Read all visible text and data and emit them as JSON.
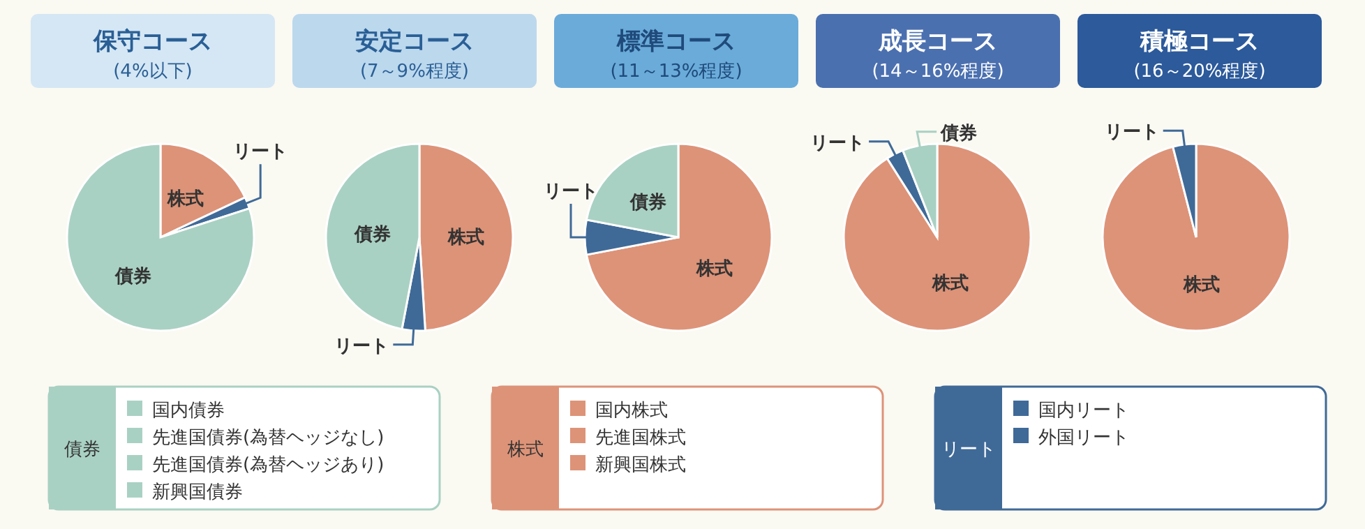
{
  "chart_data": [
    {
      "type": "pie",
      "title": "保守コース",
      "subtitle": "(4%以下)",
      "categories": [
        "株式",
        "リート",
        "債券"
      ],
      "values": [
        18,
        2,
        80
      ],
      "colors": [
        "#dd9378",
        "#3f6a98",
        "#a9d1c3"
      ]
    },
    {
      "type": "pie",
      "title": "安定コース",
      "subtitle": "(7～9%程度)",
      "categories": [
        "株式",
        "リート",
        "債券"
      ],
      "values": [
        49,
        4,
        47
      ],
      "colors": [
        "#dd9378",
        "#3f6a98",
        "#a9d1c3"
      ]
    },
    {
      "type": "pie",
      "title": "標準コース",
      "subtitle": "(11～13%程度)",
      "categories": [
        "株式",
        "リート",
        "債券"
      ],
      "values": [
        72,
        6,
        22
      ],
      "colors": [
        "#dd9378",
        "#3f6a98",
        "#a9d1c3"
      ]
    },
    {
      "type": "pie",
      "title": "成長コース",
      "subtitle": "(14～16%程度)",
      "categories": [
        "株式",
        "リート",
        "債券"
      ],
      "values": [
        91,
        3,
        6
      ],
      "colors": [
        "#dd9378",
        "#3f6a98",
        "#a9d1c3"
      ]
    },
    {
      "type": "pie",
      "title": "積極コース",
      "subtitle": "(16～20%程度)",
      "categories": [
        "株式",
        "リート"
      ],
      "values": [
        96,
        4
      ],
      "colors": [
        "#dd9378",
        "#3f6a98"
      ]
    },
    {
      "type": "other",
      "annotations": [
        "債券",
        "国内債券",
        "先進国債券(為替ヘッジなし)",
        "先進国債券(為替ヘッジあり)",
        "新興国債券",
        "株式",
        "国内株式",
        "先進国株式",
        "新興国株式",
        "リート",
        "国内リート",
        "外国リート"
      ],
      "colors": [
        "#a9d1c3",
        "#dd9378",
        "#3f6a98"
      ]
    }
  ]
}
